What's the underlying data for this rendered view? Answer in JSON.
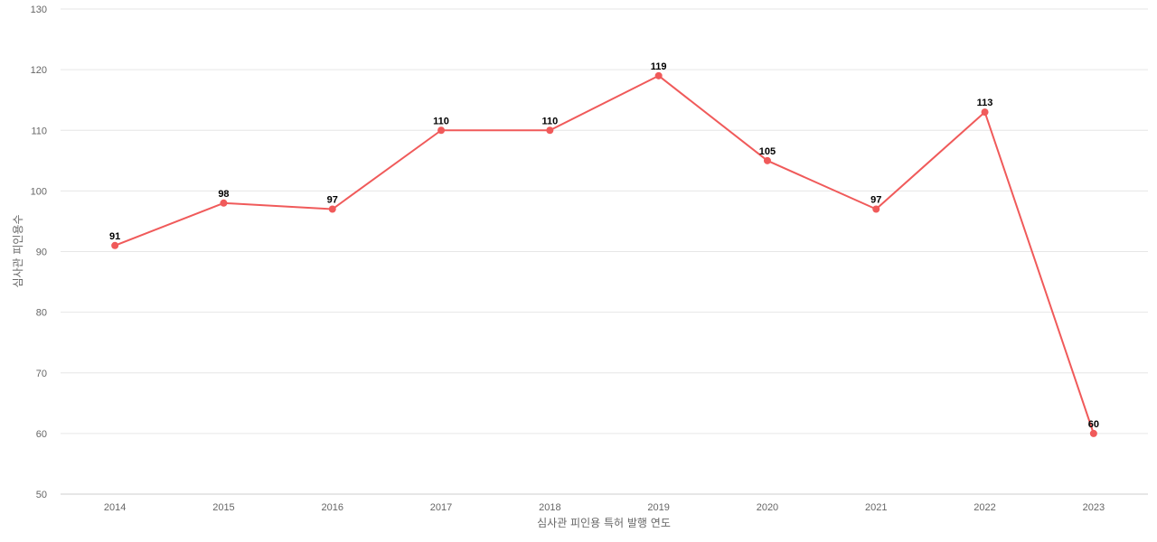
{
  "chart_data": {
    "type": "line",
    "title": "",
    "xlabel": "심사관 피인용 특허 발행 연도",
    "ylabel": "심사관 피인용수",
    "categories": [
      "2014",
      "2015",
      "2016",
      "2017",
      "2018",
      "2019",
      "2020",
      "2021",
      "2022",
      "2023"
    ],
    "series": [
      {
        "values": [
          91,
          98,
          97,
          110,
          110,
          119,
          105,
          97,
          113,
          60
        ],
        "color": "#f05a5a"
      }
    ],
    "ylim": [
      50,
      130
    ],
    "yticks": [
      50,
      60,
      70,
      80,
      90,
      100,
      110,
      120,
      130
    ],
    "grid": true,
    "data_labels": true,
    "legend": "none"
  }
}
